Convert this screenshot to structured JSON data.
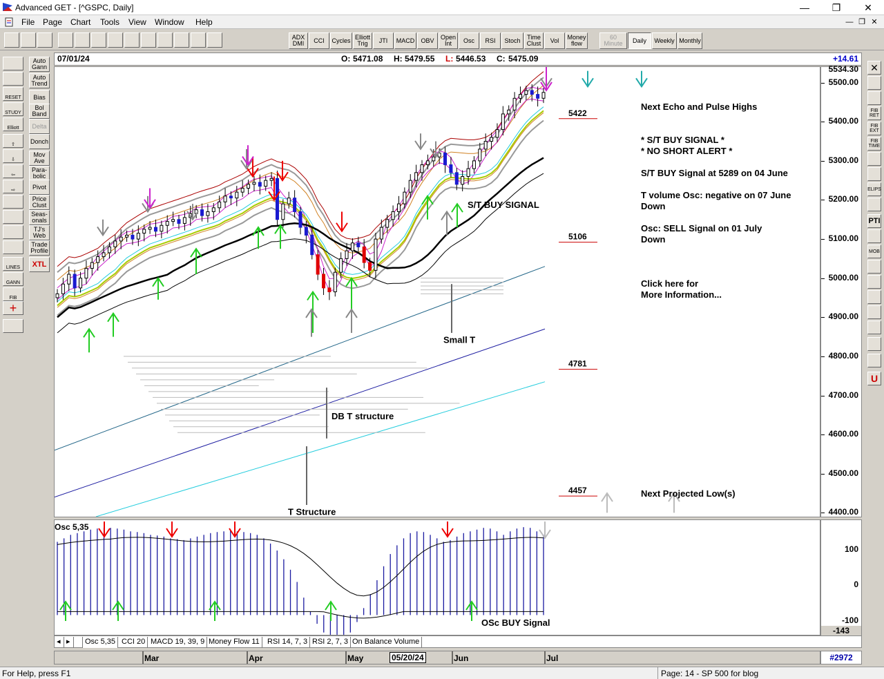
{
  "window": {
    "title": "Advanced GET - [^GSPC, Daily]",
    "minimize": "—",
    "restore": "❐",
    "close": "✕"
  },
  "menu": [
    "File",
    "Page",
    "Chart",
    "Tools",
    "View",
    "Window",
    "Help"
  ],
  "toolbar": {
    "indicators": [
      "ADX DMI",
      "CCI",
      "Cycles",
      "Elliott Trig",
      "JTI",
      "MACD",
      "OBV",
      "Open Int",
      "Osc",
      "RSI",
      "Stoch",
      "Time Clust",
      "Vol",
      "Money flow"
    ],
    "timeframes": [
      "60 Minute",
      "Daily",
      "Weekly",
      "Monthly"
    ],
    "active_timeframe": "Daily"
  },
  "left_toolbar": {
    "study_buttons": [
      "Auto Gann",
      "Auto Trend",
      "Bias",
      "Bol Band",
      "Delta",
      "Donch",
      "Mov Ave",
      "Para-bolic",
      "Pivot",
      "Price Clust",
      "Seas-onals",
      "TJ's Web",
      "Trade Profile",
      "XTL"
    ],
    "tool_labels": [
      "RESET",
      "STUDY",
      "Elliott",
      "LINES",
      "GANN",
      "FIB"
    ]
  },
  "right_toolbar": [
    "FIB RET",
    "FIB EXT",
    "FIB TIME",
    "ELIPS",
    "PTI",
    "MOB"
  ],
  "info_bar": {
    "date": "07/01/24",
    "open_label": "O:",
    "open": "5471.08",
    "high_label": "H:",
    "high": "5479.55",
    "low_label": "L:",
    "low": "5446.53",
    "close_label": "C:",
    "close": "5475.09",
    "change": "+14.61"
  },
  "chart_data": {
    "type": "candlestick",
    "symbol": "^GSPC",
    "ylim": [
      4390,
      5540
    ],
    "yticks": [
      4400,
      4500,
      4600,
      4700,
      4800,
      4900,
      5000,
      5100,
      5200,
      5300,
      5400,
      5500
    ],
    "ytick_labels": [
      "4400.00",
      "4500.00",
      "4600.00",
      "4700.00",
      "4800.00",
      "4900.00",
      "5000.00",
      "5100.00",
      "5200.00",
      "5300.00",
      "5400.00",
      "5500.00"
    ],
    "top_value": "5534.30",
    "months": [
      "Mar",
      "Apr",
      "May",
      "Jun",
      "Jul"
    ],
    "date_cursor": "05/20/24",
    "closes": [
      4960,
      4985,
      5010,
      4975,
      5000,
      5025,
      5040,
      5055,
      5065,
      5080,
      5095,
      5105,
      5110,
      5100,
      5115,
      5125,
      5130,
      5120,
      5135,
      5145,
      5150,
      5140,
      5155,
      5165,
      5175,
      5160,
      5170,
      5180,
      5195,
      5210,
      5205,
      5220,
      5230,
      5240,
      5245,
      5235,
      5250,
      5255,
      5150,
      5190,
      5205,
      5170,
      5130,
      5110,
      5060,
      5010,
      4975,
      4965,
      5015,
      5050,
      5070,
      5090,
      5080,
      5040,
      5020,
      5100,
      5130,
      5150,
      5170,
      5190,
      5220,
      5250,
      5270,
      5290,
      5300,
      5310,
      5320,
      5290,
      5270,
      5240,
      5260,
      5280,
      5300,
      5330,
      5350,
      5360,
      5380,
      5420,
      5430,
      5460,
      5470,
      5480,
      5470,
      5460,
      5475
    ]
  },
  "levels": [
    {
      "value": "5422"
    },
    {
      "value": "5106"
    },
    {
      "value": "4781"
    },
    {
      "value": "4457"
    }
  ],
  "annotations": {
    "st_buy": "S/T BUY SIGNAL",
    "small_t": "Small T",
    "db_t": "DB T structure",
    "t_structure": "T Structure"
  },
  "info_panel": {
    "next_highs": "Next Echo and Pulse Highs",
    "st_buy_signal": "* S/T BUY SIGNAL *",
    "no_short": "* NO SHORT ALERT *",
    "buy_at": "S/T BUY Signal at 5289 on 04 June",
    "tvol_1": "T volume Osc: negative on 07 June",
    "tvol_2": "Down",
    "osc_1": "Osc: SELL Signal on 01 July",
    "osc_2": "Down",
    "click_1": "Click here for",
    "click_2": "More Information...",
    "next_low": "Next Projected Low(s)"
  },
  "oscillator": {
    "label": "Osc 5,35",
    "ytick_labels": [
      "100",
      "0",
      "-100"
    ],
    "current": "-143",
    "buy_signal": "OSc BUY Signal",
    "values": [
      120,
      130,
      140,
      145,
      150,
      155,
      158,
      160,
      160,
      158,
      155,
      150,
      148,
      145,
      140,
      138,
      135,
      130,
      128,
      125,
      130,
      135,
      140,
      145,
      148,
      150,
      152,
      150,
      148,
      145,
      140,
      130,
      115,
      95,
      70,
      40,
      5,
      -40,
      -80,
      -115,
      -140,
      -155,
      -160,
      -155,
      -140,
      -110,
      -70,
      -30,
      10,
      50,
      85,
      110,
      130,
      145,
      150,
      148,
      140,
      130,
      120,
      125,
      135,
      145,
      150,
      155,
      160,
      158,
      150,
      140,
      150,
      158,
      162,
      160,
      150,
      140
    ]
  },
  "tabs": [
    "Osc 5,35",
    "CCI 20",
    "MACD 19, 39, 9",
    "Money Flow 11",
    "RSI 14, 7, 3",
    "RSI 2, 7, 3",
    "On Balance Volume"
  ],
  "bar_count": "#2972",
  "status": {
    "left": "For Help, press F1",
    "right": "Page: 14 - SP 500 for blog"
  }
}
